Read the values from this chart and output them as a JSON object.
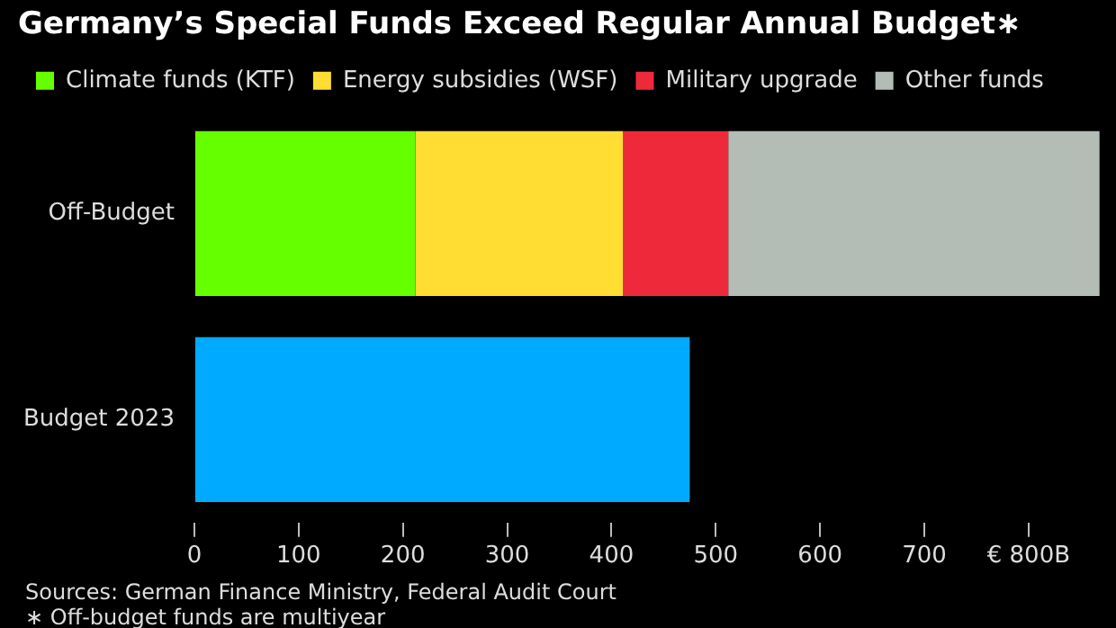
{
  "chart_data": {
    "type": "bar",
    "orientation": "horizontal",
    "stacked": true,
    "title": "Germany’s Special Funds Exceed Regular Annual Budget∗",
    "categories": [
      "Off-Budget",
      "Budget 2023"
    ],
    "series": [
      {
        "name": "Climate funds (KTF)",
        "color": "#66ff00",
        "values": [
          212,
          null
        ]
      },
      {
        "name": "Energy subsidies (WSF)",
        "color": "#ffdd33",
        "values": [
          199,
          null
        ]
      },
      {
        "name": "Military upgrade",
        "color": "#ee2a3a",
        "values": [
          101,
          null
        ]
      },
      {
        "name": "Other funds",
        "color": "#b3bdb5",
        "values": [
          356,
          null
        ]
      },
      {
        "color": "#00aaff",
        "values": [
          null,
          475
        ]
      }
    ],
    "xlim": [
      0,
      870
    ],
    "xticks": [
      0,
      100,
      200,
      300,
      400,
      500,
      600,
      700,
      {
        "value": 800,
        "label": "€ 800B"
      }
    ],
    "grid": false,
    "legend": "top left",
    "annotations": [
      "Sources: German Finance Ministry, Federal Audit Court",
      "∗ Off-budget funds are multiyear"
    ]
  }
}
